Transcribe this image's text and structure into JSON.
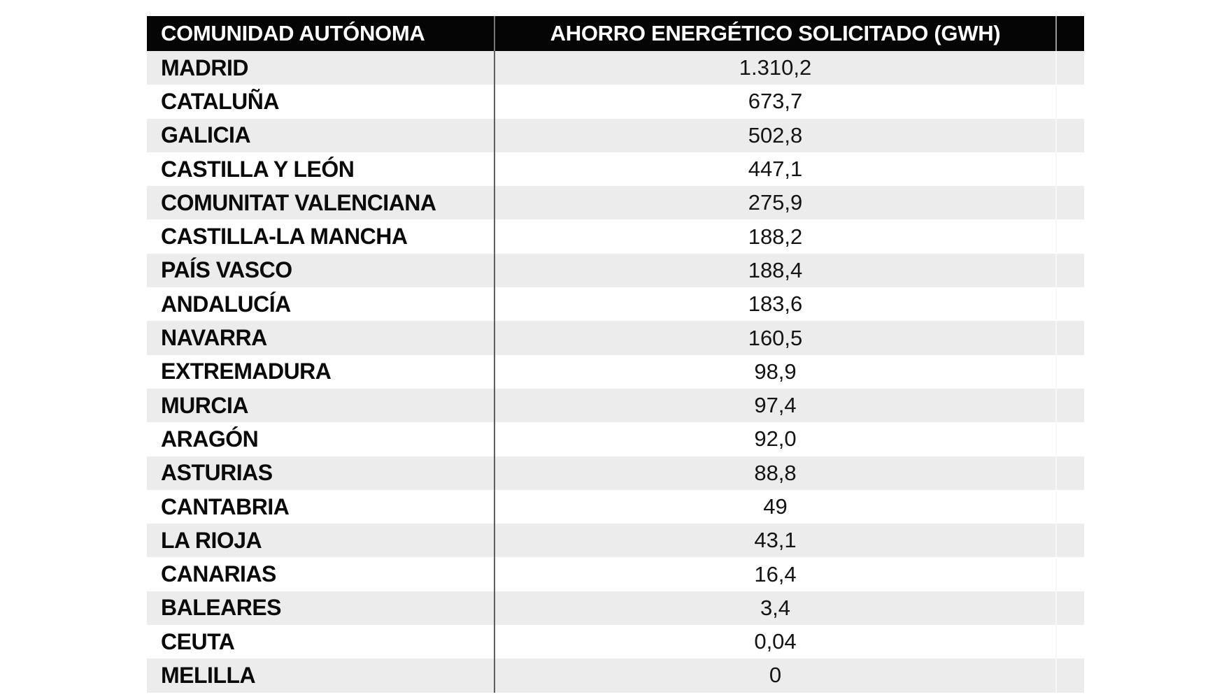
{
  "chart_data": {
    "type": "table",
    "columns": [
      "COMUNIDAD AUTÓNOMA",
      "AHORRO ENERGÉTICO SOLICITADO (GWH)"
    ],
    "ylabel": "AHORRO ENERGÉTICO SOLICITADO (GWH)",
    "rows": [
      {
        "comunidad": "MADRID",
        "ahorro_display": "1.310,2",
        "ahorro_gwh": 1310.2
      },
      {
        "comunidad": "CATALUÑA",
        "ahorro_display": "673,7",
        "ahorro_gwh": 673.7
      },
      {
        "comunidad": "GALICIA",
        "ahorro_display": "502,8",
        "ahorro_gwh": 502.8
      },
      {
        "comunidad": "CASTILLA Y LEÓN",
        "ahorro_display": "447,1",
        "ahorro_gwh": 447.1
      },
      {
        "comunidad": "COMUNITAT VALENCIANA",
        "ahorro_display": "275,9",
        "ahorro_gwh": 275.9
      },
      {
        "comunidad": "CASTILLA-LA MANCHA",
        "ahorro_display": "188,2",
        "ahorro_gwh": 188.2
      },
      {
        "comunidad": "PAÍS VASCO",
        "ahorro_display": "188,4",
        "ahorro_gwh": 188.4
      },
      {
        "comunidad": "ANDALUCÍA",
        "ahorro_display": "183,6",
        "ahorro_gwh": 183.6
      },
      {
        "comunidad": "NAVARRA",
        "ahorro_display": "160,5",
        "ahorro_gwh": 160.5
      },
      {
        "comunidad": "EXTREMADURA",
        "ahorro_display": "98,9",
        "ahorro_gwh": 98.9
      },
      {
        "comunidad": "MURCIA",
        "ahorro_display": "97,4",
        "ahorro_gwh": 97.4
      },
      {
        "comunidad": "ARAGÓN",
        "ahorro_display": "92,0",
        "ahorro_gwh": 92.0
      },
      {
        "comunidad": "ASTURIAS",
        "ahorro_display": "88,8",
        "ahorro_gwh": 88.8
      },
      {
        "comunidad": "CANTABRIA",
        "ahorro_display": "49",
        "ahorro_gwh": 49
      },
      {
        "comunidad": "LA RIOJA",
        "ahorro_display": "43,1",
        "ahorro_gwh": 43.1
      },
      {
        "comunidad": "CANARIAS",
        "ahorro_display": "16,4",
        "ahorro_gwh": 16.4
      },
      {
        "comunidad": "BALEARES",
        "ahorro_display": "3,4",
        "ahorro_gwh": 3.4
      },
      {
        "comunidad": "CEUTA",
        "ahorro_display": "0,04",
        "ahorro_gwh": 0.04
      },
      {
        "comunidad": "MELILLA",
        "ahorro_display": "0",
        "ahorro_gwh": 0
      }
    ]
  },
  "colors": {
    "header_bg": "#050505",
    "header_text": "#ffffff",
    "stripe": "#ececec",
    "row_text": "#0a0a0a",
    "divider_dark": "#5e5e5e",
    "divider_light": "#f7f7f7"
  }
}
